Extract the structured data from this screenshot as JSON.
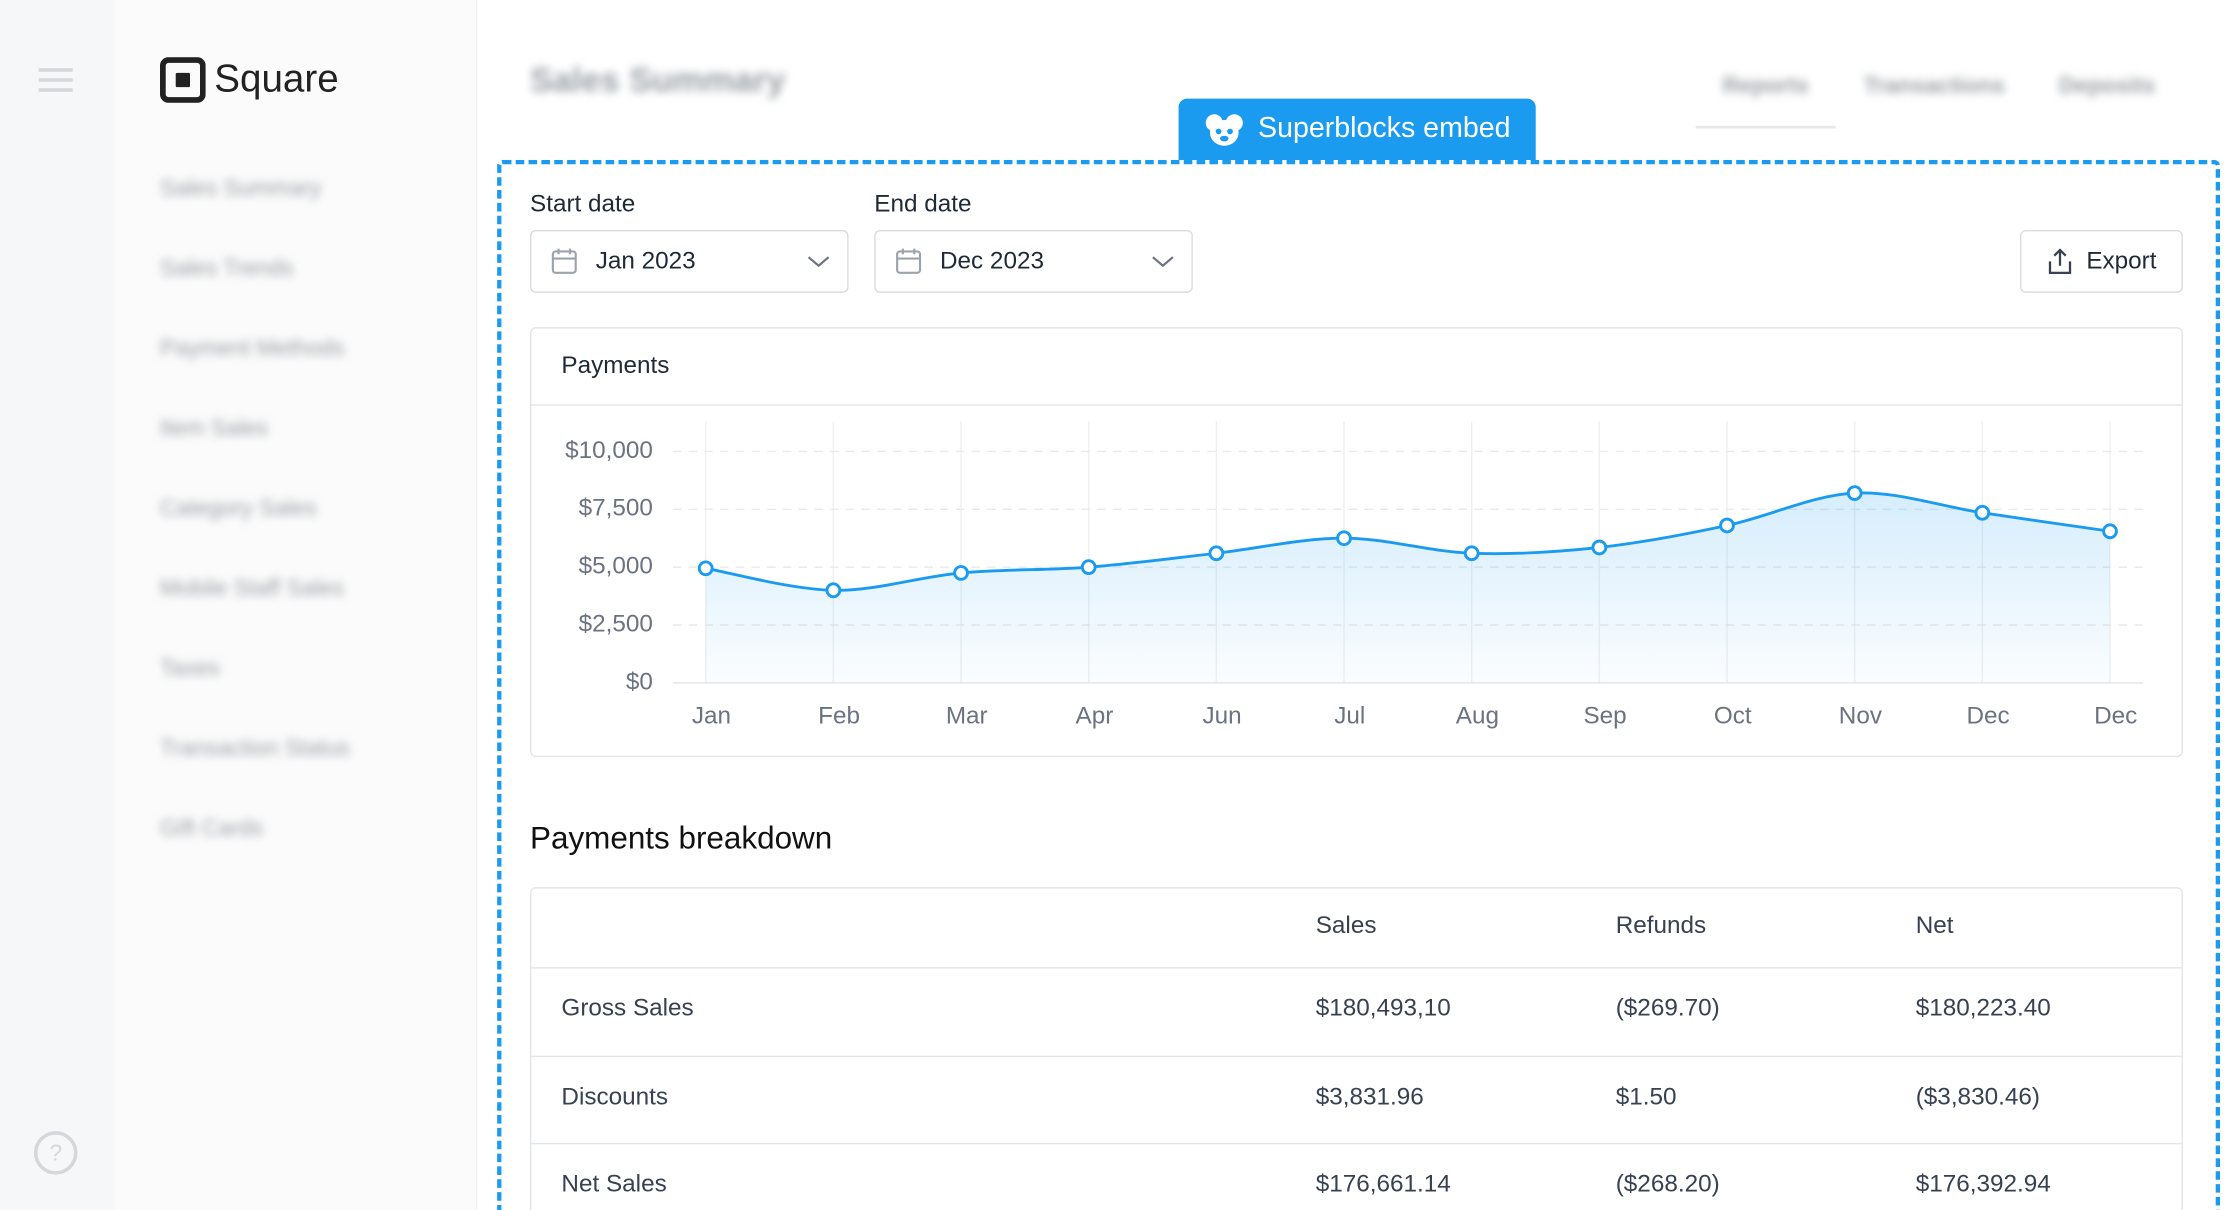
{
  "brand": "Square",
  "sidebar": {
    "items": [
      "Sales Summary",
      "Sales Trends",
      "Payment Methods",
      "Item Sales",
      "Category Sales",
      "Mobile Staff Sales",
      "Taxes",
      "Transaction Status",
      "Gift Cards"
    ]
  },
  "header": {
    "title": "Sales Summary",
    "tabs": [
      "Reports",
      "Transactions",
      "Deposits"
    ]
  },
  "embed_badge": "Superblocks embed",
  "filters": {
    "start": {
      "label": "Start date",
      "value": "Jan 2023"
    },
    "end": {
      "label": "End date",
      "value": "Dec 2023"
    },
    "export": "Export"
  },
  "chart_data": {
    "type": "line",
    "title": "Payments",
    "categories": [
      "Jan",
      "Feb",
      "Mar",
      "Apr",
      "Jun",
      "Jul",
      "Aug",
      "Sep",
      "Oct",
      "Nov",
      "Dec",
      "Dec"
    ],
    "values": [
      4950,
      4000,
      4750,
      5000,
      5600,
      6250,
      5600,
      5850,
      6800,
      8200,
      7350,
      6550
    ],
    "color": "#1a9bf0",
    "ylim": [
      0,
      10000
    ],
    "yticks": [
      {
        "value": 0,
        "label": "$0"
      },
      {
        "value": 2500,
        "label": "$2,500"
      },
      {
        "value": 5000,
        "label": "$5,000"
      },
      {
        "value": 7500,
        "label": "$7,500"
      },
      {
        "value": 10000,
        "label": "$10,000"
      }
    ],
    "grid": true,
    "area": true
  },
  "breakdown": {
    "title": "Payments breakdown",
    "columns": [
      "Sales",
      "Refunds",
      "Net"
    ],
    "rows": [
      [
        "Gross Sales",
        "$180,493,10",
        "($269.70)",
        "$180,223.40"
      ],
      [
        "Discounts",
        "$3,831.96",
        "$1.50",
        "($3,830.46)"
      ],
      [
        "Net Sales",
        "$176,661.14",
        "($268.20)",
        "$176,392.94"
      ]
    ]
  }
}
